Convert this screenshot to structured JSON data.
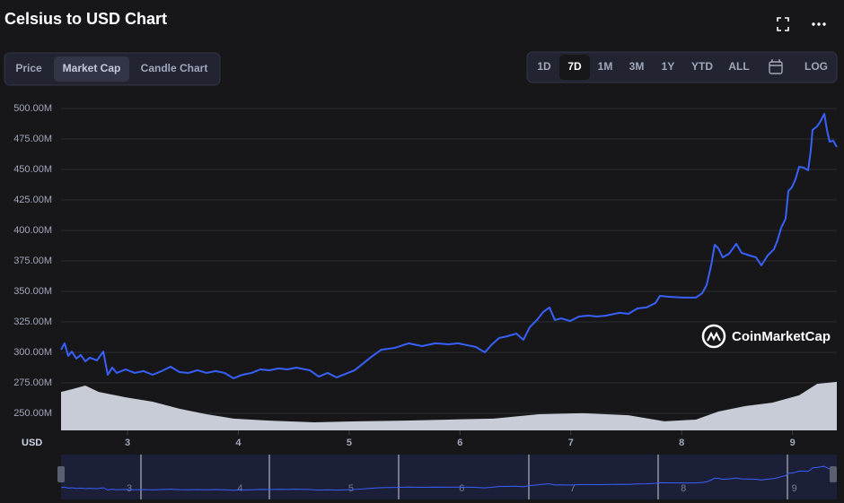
{
  "title": "Celsius to USD Chart",
  "tabs": [
    "Price",
    "Market Cap",
    "Candle Chart"
  ],
  "ranges": [
    "1D",
    "7D",
    "1M",
    "3M",
    "1Y",
    "YTD",
    "ALL"
  ],
  "log_button": "LOG",
  "watermark": "CoinMarketCap",
  "chart_data": {
    "type": "line",
    "y_label": "USD",
    "grid": true,
    "xlim": [
      2.4,
      9.4
    ],
    "xticks": [
      3,
      4,
      5,
      6,
      7,
      8,
      9
    ],
    "ylim": [
      236,
      512.5
    ],
    "yticks": [
      {
        "value": 250,
        "label": "250.00M"
      },
      {
        "value": 275,
        "label": "275.00M"
      },
      {
        "value": 300,
        "label": "300.00M"
      },
      {
        "value": 325,
        "label": "325.00M"
      },
      {
        "value": 350,
        "label": "350.00M"
      },
      {
        "value": 375,
        "label": "375.00M"
      },
      {
        "value": 400,
        "label": "400.00M"
      },
      {
        "value": 425,
        "label": "425.00M"
      },
      {
        "value": 450,
        "label": "450.00M"
      },
      {
        "value": 475,
        "label": "475.00M"
      },
      {
        "value": 500,
        "label": "500.00M"
      }
    ],
    "y2lim": [
      0,
      100
    ],
    "series": [
      {
        "color": "#3861fb",
        "x": [
          2.4,
          2.432,
          2.465,
          2.497,
          2.538,
          2.578,
          2.619,
          2.659,
          2.724,
          2.781,
          2.821,
          2.862,
          2.902,
          2.983,
          3.064,
          3.145,
          3.226,
          3.307,
          3.388,
          3.469,
          3.55,
          3.631,
          3.712,
          3.794,
          3.875,
          3.956,
          4.037,
          4.118,
          4.199,
          4.28,
          4.361,
          4.442,
          4.523,
          4.644,
          4.725,
          4.806,
          4.887,
          4.968,
          5.049,
          5.13,
          5.211,
          5.292,
          5.414,
          5.535,
          5.657,
          5.778,
          5.9,
          5.981,
          6.062,
          6.143,
          6.224,
          6.289,
          6.354,
          6.427,
          6.508,
          6.572,
          6.629,
          6.694,
          6.751,
          6.807,
          6.856,
          6.913,
          6.994,
          7.075,
          7.156,
          7.237,
          7.318,
          7.439,
          7.52,
          7.601,
          7.682,
          7.763,
          7.804,
          7.885,
          8.006,
          8.128,
          8.185,
          8.225,
          8.266,
          8.298,
          8.331,
          8.371,
          8.428,
          8.493,
          8.541,
          8.614,
          8.671,
          8.719,
          8.776,
          8.833,
          8.865,
          8.898,
          8.938,
          8.963,
          8.995,
          9.027,
          9.06,
          9.1,
          9.141,
          9.165,
          9.181,
          9.222,
          9.254,
          9.287,
          9.311,
          9.335,
          9.368,
          9.4
        ],
        "values": [
          302.2,
          307.4,
          297.1,
          300.7,
          294.9,
          297.8,
          292.6,
          295.6,
          293.4,
          300.7,
          281.6,
          287.5,
          283.1,
          286.0,
          283.1,
          284.6,
          281.6,
          284.6,
          288.2,
          283.8,
          283.1,
          285.3,
          283.1,
          284.6,
          283.1,
          278.7,
          281.6,
          283.1,
          286.0,
          285.3,
          286.8,
          286.0,
          287.5,
          285.3,
          280.1,
          283.1,
          279.4,
          282.4,
          285.3,
          291.2,
          297.1,
          302.2,
          303.7,
          307.4,
          305.1,
          307.4,
          306.6,
          307.4,
          305.9,
          304.4,
          300.0,
          306.6,
          311.8,
          313.2,
          315.4,
          310.3,
          320.6,
          326.5,
          333.1,
          336.8,
          326.5,
          327.9,
          325.7,
          329.4,
          330.1,
          329.4,
          330.1,
          332.4,
          331.6,
          336.0,
          336.8,
          340.4,
          346.3,
          345.6,
          344.9,
          344.9,
          348.5,
          355.1,
          371.3,
          388.2,
          385.3,
          377.9,
          380.9,
          389.0,
          381.6,
          379.4,
          377.9,
          371.3,
          379.4,
          384.6,
          391.9,
          402.2,
          409.6,
          432.4,
          435.3,
          441.9,
          452.2,
          451.5,
          449.3,
          465.4,
          482.4,
          485.3,
          489.7,
          495.6,
          482.4,
          472.8,
          473.5,
          468.4
        ]
      },
      {
        "color": "#d1d6e0",
        "axis": "y2",
        "x": [
          2.4,
          2.497,
          2.619,
          2.74,
          2.983,
          3.226,
          3.469,
          3.712,
          3.956,
          4.28,
          4.685,
          5.09,
          5.495,
          5.9,
          6.305,
          6.71,
          7.115,
          7.52,
          7.844,
          8.128,
          8.331,
          8.574,
          8.817,
          9.06,
          9.222,
          9.4
        ],
        "values": [
          11.4,
          12.2,
          13.3,
          11.4,
          9.8,
          8.5,
          6.4,
          4.8,
          3.5,
          2.9,
          2.4,
          2.7,
          2.9,
          3.2,
          3.5,
          4.8,
          5.1,
          4.5,
          2.7,
          3.2,
          5.6,
          7.2,
          8.2,
          10.4,
          13.8,
          14.4
        ]
      }
    ]
  }
}
